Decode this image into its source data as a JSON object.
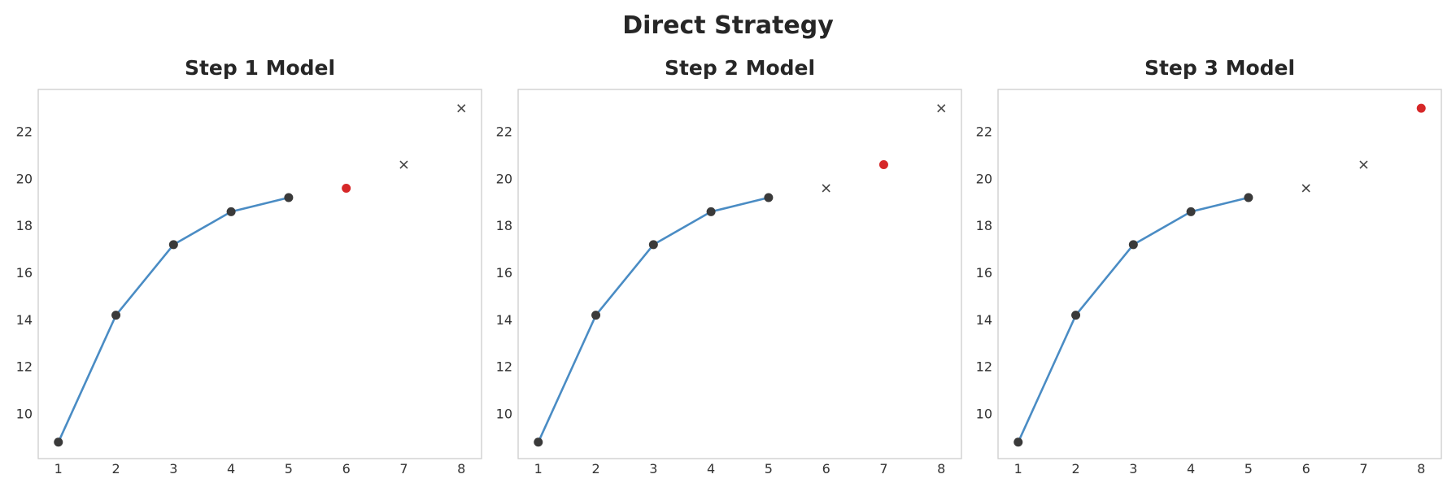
{
  "title": "Direct Strategy",
  "chart_data": [
    {
      "type": "scatter",
      "title": "Step 1 Model",
      "x_ticks": [
        1,
        2,
        3,
        4,
        5,
        6,
        7,
        8
      ],
      "y_ticks": [
        10,
        12,
        14,
        16,
        18,
        20,
        22
      ],
      "xlim": [
        0.65,
        8.35
      ],
      "ylim": [
        8.1,
        23.8
      ],
      "grid": false,
      "history": {
        "x": [
          1,
          2,
          3,
          4,
          5
        ],
        "y": [
          8.8,
          14.2,
          17.2,
          18.6,
          19.2
        ]
      },
      "target": {
        "x": 6,
        "y": 19.6
      },
      "future": {
        "x": [
          7,
          8
        ],
        "y": [
          20.6,
          23.0
        ]
      },
      "colors": {
        "line": "#4a8cc4",
        "history_point": "#3a3a3a",
        "target": "#d62728",
        "future": "#444444"
      }
    },
    {
      "type": "scatter",
      "title": "Step 2 Model",
      "x_ticks": [
        1,
        2,
        3,
        4,
        5,
        6,
        7,
        8
      ],
      "y_ticks": [
        10,
        12,
        14,
        16,
        18,
        20,
        22
      ],
      "xlim": [
        0.65,
        8.35
      ],
      "ylim": [
        8.1,
        23.8
      ],
      "grid": false,
      "history": {
        "x": [
          1,
          2,
          3,
          4,
          5
        ],
        "y": [
          8.8,
          14.2,
          17.2,
          18.6,
          19.2
        ]
      },
      "target": {
        "x": 7,
        "y": 20.6
      },
      "future": {
        "x": [
          6,
          8
        ],
        "y": [
          19.6,
          23.0
        ]
      },
      "colors": {
        "line": "#4a8cc4",
        "history_point": "#3a3a3a",
        "target": "#d62728",
        "future": "#444444"
      }
    },
    {
      "type": "scatter",
      "title": "Step 3 Model",
      "x_ticks": [
        1,
        2,
        3,
        4,
        5,
        6,
        7,
        8
      ],
      "y_ticks": [
        10,
        12,
        14,
        16,
        18,
        20,
        22
      ],
      "xlim": [
        0.65,
        8.35
      ],
      "ylim": [
        8.1,
        23.8
      ],
      "grid": false,
      "history": {
        "x": [
          1,
          2,
          3,
          4,
          5
        ],
        "y": [
          8.8,
          14.2,
          17.2,
          18.6,
          19.2
        ]
      },
      "target": {
        "x": 8,
        "y": 23.0
      },
      "future": {
        "x": [
          6,
          7
        ],
        "y": [
          19.6,
          20.6
        ]
      },
      "colors": {
        "line": "#4a8cc4",
        "history_point": "#3a3a3a",
        "target": "#d62728",
        "future": "#444444"
      }
    }
  ]
}
